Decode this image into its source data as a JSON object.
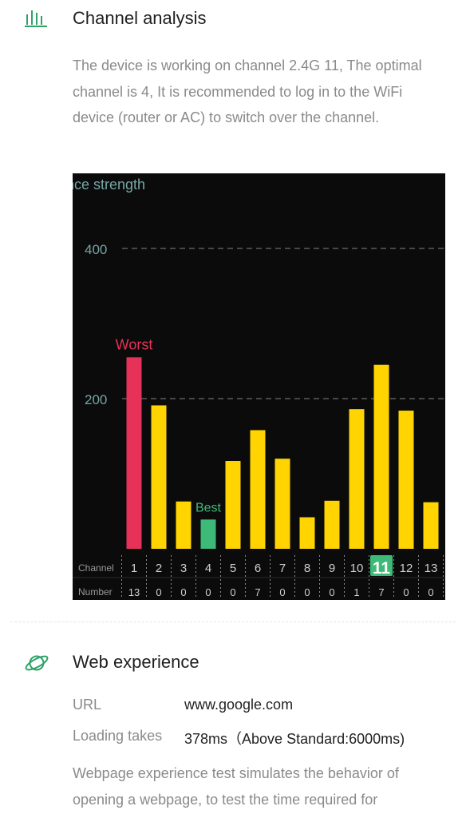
{
  "colors": {
    "accent": "#2ea36a",
    "worst": "#e63258",
    "bar": "#ffd400",
    "best": "#3dba78",
    "chart_bg": "#0b0b0b",
    "grid": "#6b6b6b",
    "axis_text": "#76a6a6"
  },
  "channel_section": {
    "icon": "bar-chart-icon",
    "title": "Channel analysis",
    "description": "The device is working on channel 2.4G 11, The optimal channel is 4, It is recommended to log in to the WiFi device (router or AC) to switch over the channel."
  },
  "chart_data": {
    "type": "bar",
    "ylabel": "nce strength",
    "ylim": [
      0,
      400
    ],
    "gridlines": [
      200,
      400
    ],
    "categories": [
      "1",
      "2",
      "3",
      "4",
      "5",
      "6",
      "7",
      "8",
      "9",
      "10",
      "11",
      "12",
      "13"
    ],
    "values": [
      255,
      191,
      63,
      39,
      117,
      158,
      120,
      42,
      64,
      186,
      245,
      184,
      62
    ],
    "numbers": [
      "13",
      "0",
      "0",
      "0",
      "0",
      "7",
      "0",
      "0",
      "0",
      "1",
      "7",
      "0",
      "0"
    ],
    "row_labels": {
      "channel": "Channel",
      "number": "Number"
    },
    "worst": {
      "index": 0,
      "label": "Worst"
    },
    "best": {
      "index": 3,
      "label": "Best"
    },
    "current_index": 10
  },
  "web_section": {
    "icon": "planet-icon",
    "title": "Web experience",
    "rows": [
      {
        "label": "URL",
        "value": "www.google.com"
      },
      {
        "label": "Loading takes",
        "value": "378ms（Above Standard:6000ms)"
      }
    ],
    "description": "Webpage experience test simulates the behavior of opening a webpage, to test the time required for"
  }
}
